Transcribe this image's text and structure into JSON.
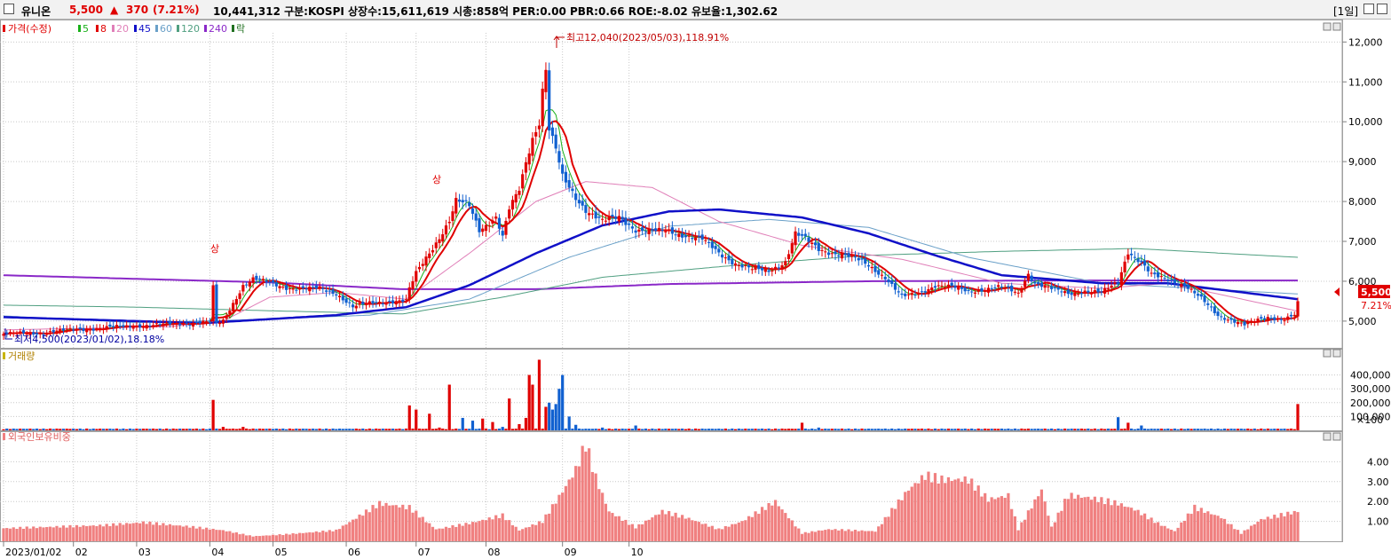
{
  "header": {
    "stock_name": "유니온",
    "price": "5,500",
    "change_arrow": "▲",
    "change": "370",
    "change_pct": "(7.21%)",
    "info": "10,441,312  구분:KOSPI  상장수:15,611,619  시총:858억  PER:0.00  PBR:0.66  ROE:-8.02  유보율:1,302.62",
    "period": "[1일]"
  },
  "chart_data": [
    {
      "type": "candlestick",
      "panel": "price",
      "legend": [
        "가격(수정)",
        "5",
        "8",
        "20",
        "45",
        "60",
        "120",
        "240",
        "락"
      ],
      "y_ticks": [
        5000,
        6000,
        7000,
        8000,
        9000,
        10000,
        11000,
        12000
      ],
      "y_tick_labels": [
        "5,000",
        "6,000",
        "7,000",
        "8,000",
        "9,000",
        "10,000",
        "11,000",
        "12,000"
      ],
      "ylim": [
        4330,
        12230
      ],
      "x_ticks": [
        {
          "date": "2023/01/02",
          "label": "2023/01/02"
        },
        {
          "date": "2023/02",
          "label": "02"
        },
        {
          "date": "2023/03",
          "label": "03"
        },
        {
          "date": "2023/04",
          "label": "04"
        },
        {
          "date": "2023/05",
          "label": "05"
        },
        {
          "date": "2023/06",
          "label": "06"
        },
        {
          "date": "2023/07",
          "label": "07"
        },
        {
          "date": "2023/08",
          "label": "08"
        },
        {
          "date": "2023/09",
          "label": "09"
        },
        {
          "date": "2023/10",
          "label": "10"
        }
      ],
      "x_range": [
        "2023/01/02",
        "2023/10/20"
      ],
      "annotations": {
        "high": "최고12,040(2023/05/03),118.91%",
        "low": "최저4,500(2023/01/02),18.18%",
        "upper_limit_1": "상",
        "upper_limit_2": "상"
      },
      "last_price_label": "5,500",
      "last_change_label": "7.21%",
      "series": [
        {
          "name": "가격(수정)",
          "color": "#e00000",
          "close": [
            [
              0,
              4680
            ],
            [
              10,
              4700
            ],
            [
              20,
              4780
            ],
            [
              30,
              4830
            ],
            [
              40,
              4880
            ],
            [
              50,
              4920
            ],
            [
              60,
              4980
            ],
            [
              62,
              4960
            ],
            [
              63,
              4900
            ],
            [
              66,
              5000
            ],
            [
              72,
              5900
            ],
            [
              75,
              6050
            ],
            [
              80,
              5950
            ],
            [
              85,
              5850
            ],
            [
              90,
              5800
            ],
            [
              95,
              5820
            ],
            [
              100,
              5700
            ],
            [
              105,
              5350
            ],
            [
              110,
              5450
            ],
            [
              115,
              5500
            ],
            [
              121,
              5500
            ],
            [
              122,
              5800
            ],
            [
              124,
              6200
            ],
            [
              127,
              6600
            ],
            [
              131,
              7100
            ],
            [
              134,
              7500
            ],
            [
              136,
              8000
            ],
            [
              140,
              7900
            ],
            [
              143,
              7300
            ],
            [
              148,
              7600
            ],
            [
              150,
              7100
            ],
            [
              152,
              7800
            ],
            [
              155,
              8300
            ],
            [
              157,
              9000
            ],
            [
              159,
              9600
            ],
            [
              161,
              10000
            ],
            [
              162,
              10800
            ],
            [
              163,
              11300
            ],
            [
              164,
              9800
            ],
            [
              166,
              9300
            ],
            [
              168,
              8600
            ],
            [
              172,
              8100
            ],
            [
              175,
              7800
            ],
            [
              180,
              7500
            ],
            [
              185,
              7600
            ],
            [
              190,
              7300
            ],
            [
              195,
              7250
            ],
            [
              200,
              7250
            ],
            [
              205,
              7150
            ],
            [
              210,
              7050
            ],
            [
              215,
              6700
            ],
            [
              220,
              6450
            ],
            [
              225,
              6300
            ],
            [
              230,
              6250
            ],
            [
              235,
              6500
            ],
            [
              238,
              7200
            ],
            [
              241,
              7050
            ],
            [
              245,
              6800
            ],
            [
              250,
              6700
            ],
            [
              255,
              6600
            ],
            [
              260,
              6400
            ],
            [
              265,
              6100
            ],
            [
              270,
              5600
            ],
            [
              275,
              5700
            ],
            [
              280,
              5900
            ],
            [
              285,
              5850
            ],
            [
              290,
              5750
            ],
            [
              295,
              5800
            ],
            [
              300,
              5850
            ],
            [
              305,
              5700
            ],
            [
              308,
              6200
            ],
            [
              310,
              5950
            ],
            [
              315,
              5800
            ],
            [
              320,
              5700
            ],
            [
              325,
              5750
            ],
            [
              330,
              5700
            ],
            [
              335,
              6000
            ],
            [
              338,
              6750
            ],
            [
              342,
              6450
            ],
            [
              345,
              6150
            ],
            [
              350,
              6050
            ],
            [
              355,
              5900
            ],
            [
              360,
              5550
            ],
            [
              365,
              5150
            ],
            [
              370,
              5000
            ],
            [
              373,
              4900
            ],
            [
              376,
              5000
            ],
            [
              380,
              5100
            ],
            [
              385,
              5050
            ],
            [
              388,
              5150
            ],
            [
              389,
              5500
            ]
          ]
        },
        {
          "name": "5",
          "color": "#18b018"
        },
        {
          "name": "8",
          "color": "#e00000"
        },
        {
          "name": "20",
          "color": "#e07fb8",
          "values": [
            [
              0,
              4780
            ],
            [
              50,
              4860
            ],
            [
              66,
              5000
            ],
            [
              80,
              5600
            ],
            [
              100,
              5720
            ],
            [
              121,
              5550
            ],
            [
              140,
              6700
            ],
            [
              160,
              8000
            ],
            [
              175,
              8500
            ],
            [
              195,
              8350
            ],
            [
              215,
              7500
            ],
            [
              240,
              6900
            ],
            [
              270,
              6550
            ],
            [
              300,
              5950
            ],
            [
              330,
              5820
            ],
            [
              350,
              5950
            ],
            [
              389,
              5250
            ]
          ]
        },
        {
          "name": "45",
          "color": "#1010c8",
          "values": [
            [
              0,
              5100
            ],
            [
              40,
              5000
            ],
            [
              60,
              4950
            ],
            [
              80,
              5050
            ],
            [
              100,
              5150
            ],
            [
              121,
              5350
            ],
            [
              140,
              5900
            ],
            [
              160,
              6700
            ],
            [
              180,
              7400
            ],
            [
              200,
              7750
            ],
            [
              215,
              7800
            ],
            [
              240,
              7600
            ],
            [
              260,
              7200
            ],
            [
              280,
              6650
            ],
            [
              300,
              6150
            ],
            [
              330,
              5950
            ],
            [
              350,
              5950
            ],
            [
              389,
              5550
            ]
          ]
        },
        {
          "name": "60",
          "color": "#6aa0c8",
          "values": [
            [
              0,
              5130
            ],
            [
              40,
              4960
            ],
            [
              80,
              5050
            ],
            [
              110,
              5150
            ],
            [
              140,
              5550
            ],
            [
              170,
              6600
            ],
            [
              200,
              7380
            ],
            [
              230,
              7550
            ],
            [
              260,
              7350
            ],
            [
              290,
              6600
            ],
            [
              330,
              5950
            ],
            [
              389,
              5680
            ]
          ]
        },
        {
          "name": "120",
          "color": "#4f9f80",
          "values": [
            [
              0,
              5400
            ],
            [
              40,
              5350
            ],
            [
              80,
              5260
            ],
            [
              120,
              5180
            ],
            [
              150,
              5600
            ],
            [
              180,
              6100
            ],
            [
              220,
              6400
            ],
            [
              260,
              6650
            ],
            [
              300,
              6750
            ],
            [
              340,
              6820
            ],
            [
              389,
              6600
            ]
          ]
        },
        {
          "name": "240",
          "color": "#8a28c8",
          "values": [
            [
              0,
              6150
            ],
            [
              80,
              5970
            ],
            [
              120,
              5800
            ],
            [
              160,
              5800
            ],
            [
              200,
              5930
            ],
            [
              260,
              6000
            ],
            [
              320,
              6020
            ],
            [
              389,
              6020
            ]
          ]
        },
        {
          "name": "락",
          "color": "#207020"
        }
      ]
    },
    {
      "type": "bar",
      "panel": "volume",
      "legend": [
        "거래량"
      ],
      "y_ticks": [
        100000,
        200000,
        300000,
        400000
      ],
      "y_tick_labels": [
        "100,000",
        "200,000",
        "300,000",
        "400,000"
      ],
      "unit_label": "×100",
      "ylim": [
        0,
        500000
      ],
      "values": [
        [
          63,
          220000
        ],
        [
          66,
          25000
        ],
        [
          72,
          25000
        ],
        [
          92,
          10000
        ],
        [
          122,
          180000
        ],
        [
          124,
          150000
        ],
        [
          128,
          120000
        ],
        [
          131,
          20000
        ],
        [
          134,
          330000
        ],
        [
          138,
          90000
        ],
        [
          141,
          70000
        ],
        [
          144,
          85000
        ],
        [
          147,
          60000
        ],
        [
          150,
          25000
        ],
        [
          152,
          230000
        ],
        [
          155,
          45000
        ],
        [
          157,
          90000
        ],
        [
          158,
          400000
        ],
        [
          159,
          330000
        ],
        [
          161,
          510000
        ],
        [
          163,
          170000
        ],
        [
          164,
          200000
        ],
        [
          165,
          150000
        ],
        [
          166,
          190000
        ],
        [
          167,
          300000
        ],
        [
          168,
          400000
        ],
        [
          170,
          100000
        ],
        [
          172,
          40000
        ],
        [
          180,
          20000
        ],
        [
          190,
          35000
        ],
        [
          240,
          55000
        ],
        [
          245,
          20000
        ],
        [
          335,
          95000
        ],
        [
          338,
          55000
        ],
        [
          342,
          35000
        ],
        [
          389,
          190000
        ]
      ],
      "baseline_volume": 8000
    },
    {
      "type": "bar",
      "panel": "foreign_ownership",
      "legend": [
        "외국인보유비중"
      ],
      "y_ticks": [
        1.0,
        2.0,
        3.0,
        4.0
      ],
      "y_tick_labels": [
        "1.00",
        "2.00",
        "3.00",
        "4.00"
      ],
      "ylim": [
        0,
        5.0
      ],
      "values": [
        [
          0,
          0.65
        ],
        [
          30,
          0.8
        ],
        [
          42,
          0.95
        ],
        [
          55,
          0.75
        ],
        [
          66,
          0.55
        ],
        [
          75,
          0.25
        ],
        [
          85,
          0.35
        ],
        [
          100,
          0.55
        ],
        [
          113,
          1.9
        ],
        [
          122,
          1.7
        ],
        [
          130,
          0.6
        ],
        [
          140,
          0.9
        ],
        [
          150,
          1.3
        ],
        [
          155,
          0.55
        ],
        [
          162,
          1.0
        ],
        [
          168,
          2.5
        ],
        [
          172,
          3.6
        ],
        [
          175,
          4.9
        ],
        [
          178,
          3.2
        ],
        [
          182,
          1.5
        ],
        [
          190,
          0.7
        ],
        [
          198,
          1.5
        ],
        [
          205,
          1.2
        ],
        [
          215,
          0.6
        ],
        [
          222,
          1.0
        ],
        [
          232,
          2.0
        ],
        [
          240,
          0.4
        ],
        [
          248,
          0.6
        ],
        [
          262,
          0.5
        ],
        [
          272,
          2.6
        ],
        [
          277,
          3.3
        ],
        [
          282,
          3.1
        ],
        [
          290,
          3.1
        ],
        [
          296,
          2.1
        ],
        [
          302,
          2.3
        ],
        [
          305,
          0.6
        ],
        [
          312,
          2.6
        ],
        [
          315,
          0.7
        ],
        [
          320,
          2.3
        ],
        [
          326,
          2.2
        ],
        [
          335,
          1.9
        ],
        [
          340,
          1.6
        ],
        [
          347,
          0.9
        ],
        [
          352,
          0.5
        ],
        [
          358,
          1.7
        ],
        [
          366,
          1.2
        ],
        [
          372,
          0.4
        ],
        [
          378,
          1.1
        ],
        [
          389,
          1.5
        ]
      ]
    }
  ]
}
